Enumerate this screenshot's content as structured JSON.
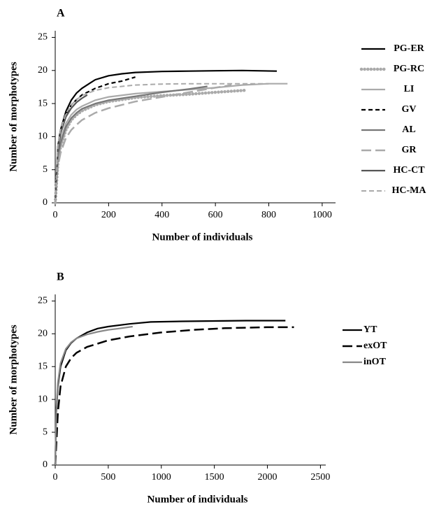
{
  "chart_data": [
    {
      "type": "line",
      "panel_label": "A",
      "xlabel": "Number of individuals",
      "ylabel": "Number of morphotypes",
      "xlim": [
        0,
        1050
      ],
      "ylim": [
        0,
        26
      ],
      "xticks": [
        0,
        200,
        400,
        600,
        800,
        1000
      ],
      "yticks": [
        0,
        5,
        10,
        15,
        20,
        25
      ],
      "grid": false,
      "legend_position": "right",
      "series": [
        {
          "name": "PG-ER",
          "color": "#000000",
          "style": "solid",
          "x": [
            0,
            10,
            20,
            40,
            60,
            80,
            100,
            150,
            200,
            250,
            300,
            400,
            500,
            600,
            700,
            830
          ],
          "y": [
            0,
            8.5,
            11,
            13.8,
            15.5,
            16.6,
            17.3,
            18.6,
            19.2,
            19.5,
            19.7,
            19.85,
            19.9,
            19.95,
            20,
            19.9
          ]
        },
        {
          "name": "PG-RC",
          "color": "#aaaaaa",
          "style": "dotted-thick",
          "x": [
            0,
            10,
            20,
            40,
            60,
            80,
            100,
            150,
            200,
            300,
            400,
            500,
            600,
            710
          ],
          "y": [
            0,
            6,
            8.5,
            11,
            12.5,
            13.3,
            13.9,
            14.8,
            15.3,
            15.9,
            16.2,
            16.4,
            16.7,
            17
          ]
        },
        {
          "name": "LI",
          "color": "#aaaaaa",
          "style": "solid",
          "x": [
            0,
            10,
            20,
            40,
            60,
            80,
            100,
            150,
            200,
            300,
            400,
            500,
            600,
            700,
            800,
            870
          ],
          "y": [
            0,
            7,
            9.5,
            12,
            13.3,
            14.1,
            14.6,
            15.5,
            16,
            16.5,
            16.8,
            17.1,
            17.4,
            17.8,
            18,
            18
          ]
        },
        {
          "name": "GV",
          "color": "#000000",
          "style": "short-dash",
          "x": [
            0,
            10,
            20,
            40,
            60,
            80,
            100,
            150,
            200,
            250,
            300
          ],
          "y": [
            0,
            8,
            10.5,
            13.3,
            14.8,
            15.6,
            16.3,
            17.3,
            18,
            18.4,
            19
          ]
        },
        {
          "name": "AL",
          "color": "#777777",
          "style": "solid",
          "x": [
            0,
            10,
            20,
            40,
            60,
            80,
            100,
            150,
            200,
            300,
            400,
            500,
            570
          ],
          "y": [
            0,
            7,
            9,
            11.5,
            12.8,
            13.6,
            14.2,
            15,
            15.5,
            16.1,
            16.7,
            17.2,
            17.6
          ]
        },
        {
          "name": "GR",
          "color": "#aaaaaa",
          "style": "long-dash",
          "x": [
            0,
            10,
            20,
            40,
            60,
            80,
            100,
            150,
            200,
            300,
            400,
            500,
            600,
            660
          ],
          "y": [
            0,
            5.5,
            7.5,
            9.8,
            11,
            11.8,
            12.5,
            13.6,
            14.3,
            15.3,
            16,
            16.7,
            17.4,
            17.8
          ]
        },
        {
          "name": "HC-CT",
          "color": "#555555",
          "style": "solid",
          "x": [
            0,
            10,
            20,
            40,
            60,
            80,
            100,
            120
          ],
          "y": [
            0,
            8,
            10.5,
            13,
            14.3,
            15.2,
            15.8,
            16.3
          ]
        },
        {
          "name": "HC-MA",
          "color": "#aaaaaa",
          "style": "dashed",
          "x": [
            0,
            10,
            20,
            40,
            60,
            80,
            100,
            150,
            200,
            300,
            400,
            500,
            600,
            700,
            800
          ],
          "y": [
            0,
            8.5,
            11,
            13.5,
            14.8,
            15.6,
            16.2,
            17,
            17.4,
            17.8,
            17.95,
            18,
            18,
            18,
            18
          ]
        }
      ]
    },
    {
      "type": "line",
      "panel_label": "B",
      "xlabel": "Number of individuals",
      "ylabel": "Number of morphotypes",
      "xlim": [
        0,
        2550
      ],
      "ylim": [
        0,
        26
      ],
      "xticks": [
        0,
        500,
        1000,
        1500,
        2000,
        2500
      ],
      "yticks": [
        0,
        5,
        10,
        15,
        20,
        25
      ],
      "grid": false,
      "legend_position": "right",
      "series": [
        {
          "name": "YT",
          "color": "#000000",
          "style": "solid",
          "x": [
            0,
            10,
            25,
            50,
            100,
            150,
            200,
            300,
            400,
            500,
            700,
            900,
            1200,
            1500,
            1800,
            2170
          ],
          "y": [
            0,
            8,
            12,
            15,
            17.5,
            18.6,
            19.3,
            20.2,
            20.8,
            21.1,
            21.5,
            21.8,
            21.9,
            21.95,
            22,
            22
          ]
        },
        {
          "name": "exOT",
          "color": "#000000",
          "style": "long-dash",
          "x": [
            0,
            10,
            25,
            50,
            100,
            150,
            200,
            300,
            500,
            700,
            1000,
            1300,
            1600,
            2000,
            2250
          ],
          "y": [
            0,
            3,
            8,
            12,
            15,
            16.3,
            17.1,
            18,
            19,
            19.6,
            20.2,
            20.6,
            20.85,
            21,
            21
          ]
        },
        {
          "name": "inOT",
          "color": "#888888",
          "style": "solid",
          "x": [
            0,
            10,
            25,
            50,
            100,
            150,
            200,
            300,
            400,
            500,
            600,
            730
          ],
          "y": [
            0,
            8.5,
            12.5,
            15.5,
            17.7,
            18.7,
            19.3,
            19.9,
            20.3,
            20.6,
            20.8,
            21.1
          ]
        }
      ]
    }
  ]
}
